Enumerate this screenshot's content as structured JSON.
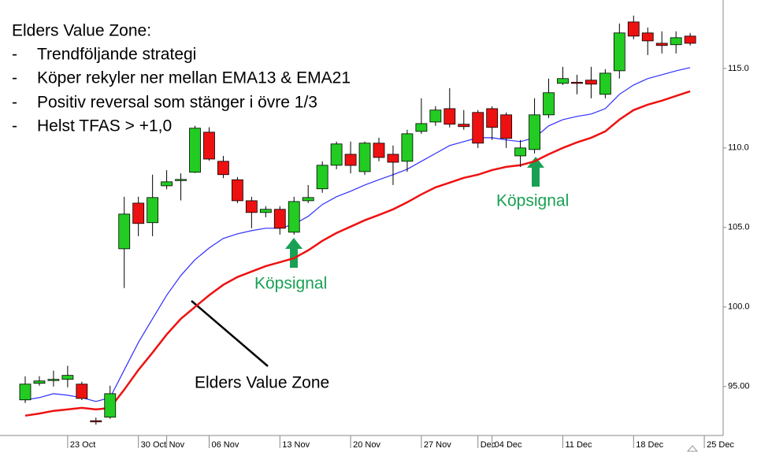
{
  "chart_data": {
    "type": "candlestick",
    "title": "Elders Value Zone:",
    "bullets": [
      "Trendföljande strategi",
      "Köper rekyler ner mellan EMA13 & EMA21",
      "Positiv reversal som stänger i övre 1/3",
      "Helst TFAS > +1,0"
    ],
    "annotations": [
      "Köpsignal",
      "Köpsignal",
      "Elders Value Zone"
    ],
    "categories": [
      null,
      null,
      null,
      "23 Oct",
      null,
      null,
      null,
      null,
      "30 Oct",
      null,
      "Nov",
      null,
      null,
      "06 Nov",
      null,
      null,
      null,
      null,
      "13 Nov",
      null,
      null,
      null,
      null,
      "20 Nov",
      null,
      null,
      null,
      null,
      "27 Nov",
      null,
      null,
      null,
      "Dec",
      "04 Dec",
      null,
      null,
      null,
      null,
      "11 Dec",
      null,
      null,
      null,
      null,
      "18 Dec",
      null,
      null,
      null,
      null,
      "25 Dec"
    ],
    "open": [
      94.16,
      95.2,
      95.4,
      95.45,
      95.15,
      92.85,
      93.07,
      103.66,
      106.53,
      105.3,
      107.62,
      108.0,
      108.47,
      110.99,
      109.16,
      108.0,
      106.68,
      105.94,
      106.14,
      104.7,
      106.68,
      107.43,
      108.91,
      109.6,
      108.51,
      110.3,
      109.6,
      109.16,
      111.04,
      111.63,
      112.47,
      111.49,
      112.23,
      112.47,
      112.08,
      109.5,
      109.9,
      112.08,
      114.06,
      114.13,
      114.26,
      113.37,
      114.85,
      117.92,
      117.23,
      116.58,
      116.49,
      117.03,
      null
    ],
    "high": [
      95.64,
      95.65,
      96.0,
      96.3,
      95.3,
      93.05,
      95.05,
      106.93,
      106.93,
      108.32,
      108.6,
      108.4,
      111.39,
      111.3,
      109.5,
      108.17,
      106.93,
      106.34,
      106.34,
      106.93,
      107.67,
      109.16,
      110.4,
      110.4,
      110.4,
      110.64,
      110.15,
      111.14,
      113.12,
      112.62,
      113.76,
      112.38,
      112.38,
      112.62,
      112.23,
      110.5,
      113.12,
      114.36,
      115.1,
      114.6,
      115.1,
      114.95,
      117.82,
      118.32,
      117.57,
      117.33,
      117.33,
      117.23,
      null
    ],
    "low": [
      93.96,
      95.05,
      95.0,
      94.95,
      94.15,
      92.6,
      92.97,
      101.19,
      104.45,
      104.45,
      107.4,
      106.7,
      108.42,
      109.2,
      108.1,
      106.53,
      104.95,
      105.64,
      104.55,
      104.55,
      106.53,
      107.18,
      108.66,
      108.4,
      108.3,
      109.16,
      107.67,
      108.5,
      110.89,
      111.39,
      111.29,
      111.14,
      110.0,
      110.5,
      110.0,
      108.8,
      109.65,
      111.88,
      113.96,
      113.37,
      113.12,
      113.12,
      114.36,
      116.83,
      115.84,
      115.94,
      115.94,
      116.44,
      null
    ],
    "close": [
      95.15,
      95.35,
      95.45,
      95.7,
      94.25,
      92.8,
      94.55,
      105.84,
      105.25,
      106.88,
      107.87,
      108.02,
      111.24,
      109.3,
      108.32,
      106.68,
      105.94,
      106.14,
      104.95,
      106.63,
      106.88,
      108.91,
      110.25,
      108.9,
      110.3,
      109.4,
      109.1,
      110.89,
      111.53,
      112.38,
      111.49,
      111.34,
      110.3,
      111.29,
      110.6,
      110.0,
      112.08,
      113.47,
      114.36,
      114.11,
      114.01,
      114.7,
      117.23,
      117.03,
      116.73,
      116.44,
      116.93,
      116.58,
      null
    ],
    "up_color": "#22cc22",
    "down_color": "#ee1111",
    "overlays": [
      {
        "color": "#2f2fff",
        "values": [
          94.16,
          94.3,
          94.55,
          94.45,
          94.3,
          94.06,
          94.3,
          96.04,
          97.77,
          99.26,
          100.74,
          101.98,
          102.97,
          103.71,
          104.31,
          104.6,
          104.8,
          104.95,
          104.95,
          105.2,
          105.7,
          106.44,
          106.93,
          107.28,
          107.67,
          108.0,
          108.32,
          108.66,
          109.16,
          109.65,
          110.15,
          110.4,
          110.64,
          110.64,
          110.5,
          110.4,
          110.64,
          111.39,
          111.78,
          111.98,
          112.13,
          112.47,
          113.37,
          113.96,
          114.36,
          114.6,
          114.85,
          115.05,
          null
        ]
      },
      {
        "color": "#ee1111",
        "values": [
          93.17,
          93.3,
          93.47,
          93.56,
          93.66,
          93.56,
          93.66,
          94.8,
          96.04,
          97.13,
          98.27,
          99.26,
          100.0,
          100.74,
          101.39,
          101.88,
          102.23,
          102.57,
          102.82,
          103.07,
          103.56,
          104.16,
          104.65,
          105.05,
          105.45,
          105.79,
          106.14,
          106.58,
          107.08,
          107.52,
          107.82,
          108.12,
          108.32,
          108.61,
          108.81,
          108.91,
          109.16,
          109.6,
          110.0,
          110.35,
          110.64,
          111.04,
          111.78,
          112.38,
          112.72,
          112.97,
          113.27,
          113.56,
          null
        ]
      }
    ],
    "ylim": [
      91.92,
      119.3
    ],
    "yticks": [
      {
        "value": 95,
        "label": "95.00"
      },
      {
        "value": 100,
        "label": "100.0"
      },
      {
        "value": 105,
        "label": "105.0"
      },
      {
        "value": 110,
        "label": "110.0"
      },
      {
        "value": 115,
        "label": "115.0"
      }
    ]
  }
}
